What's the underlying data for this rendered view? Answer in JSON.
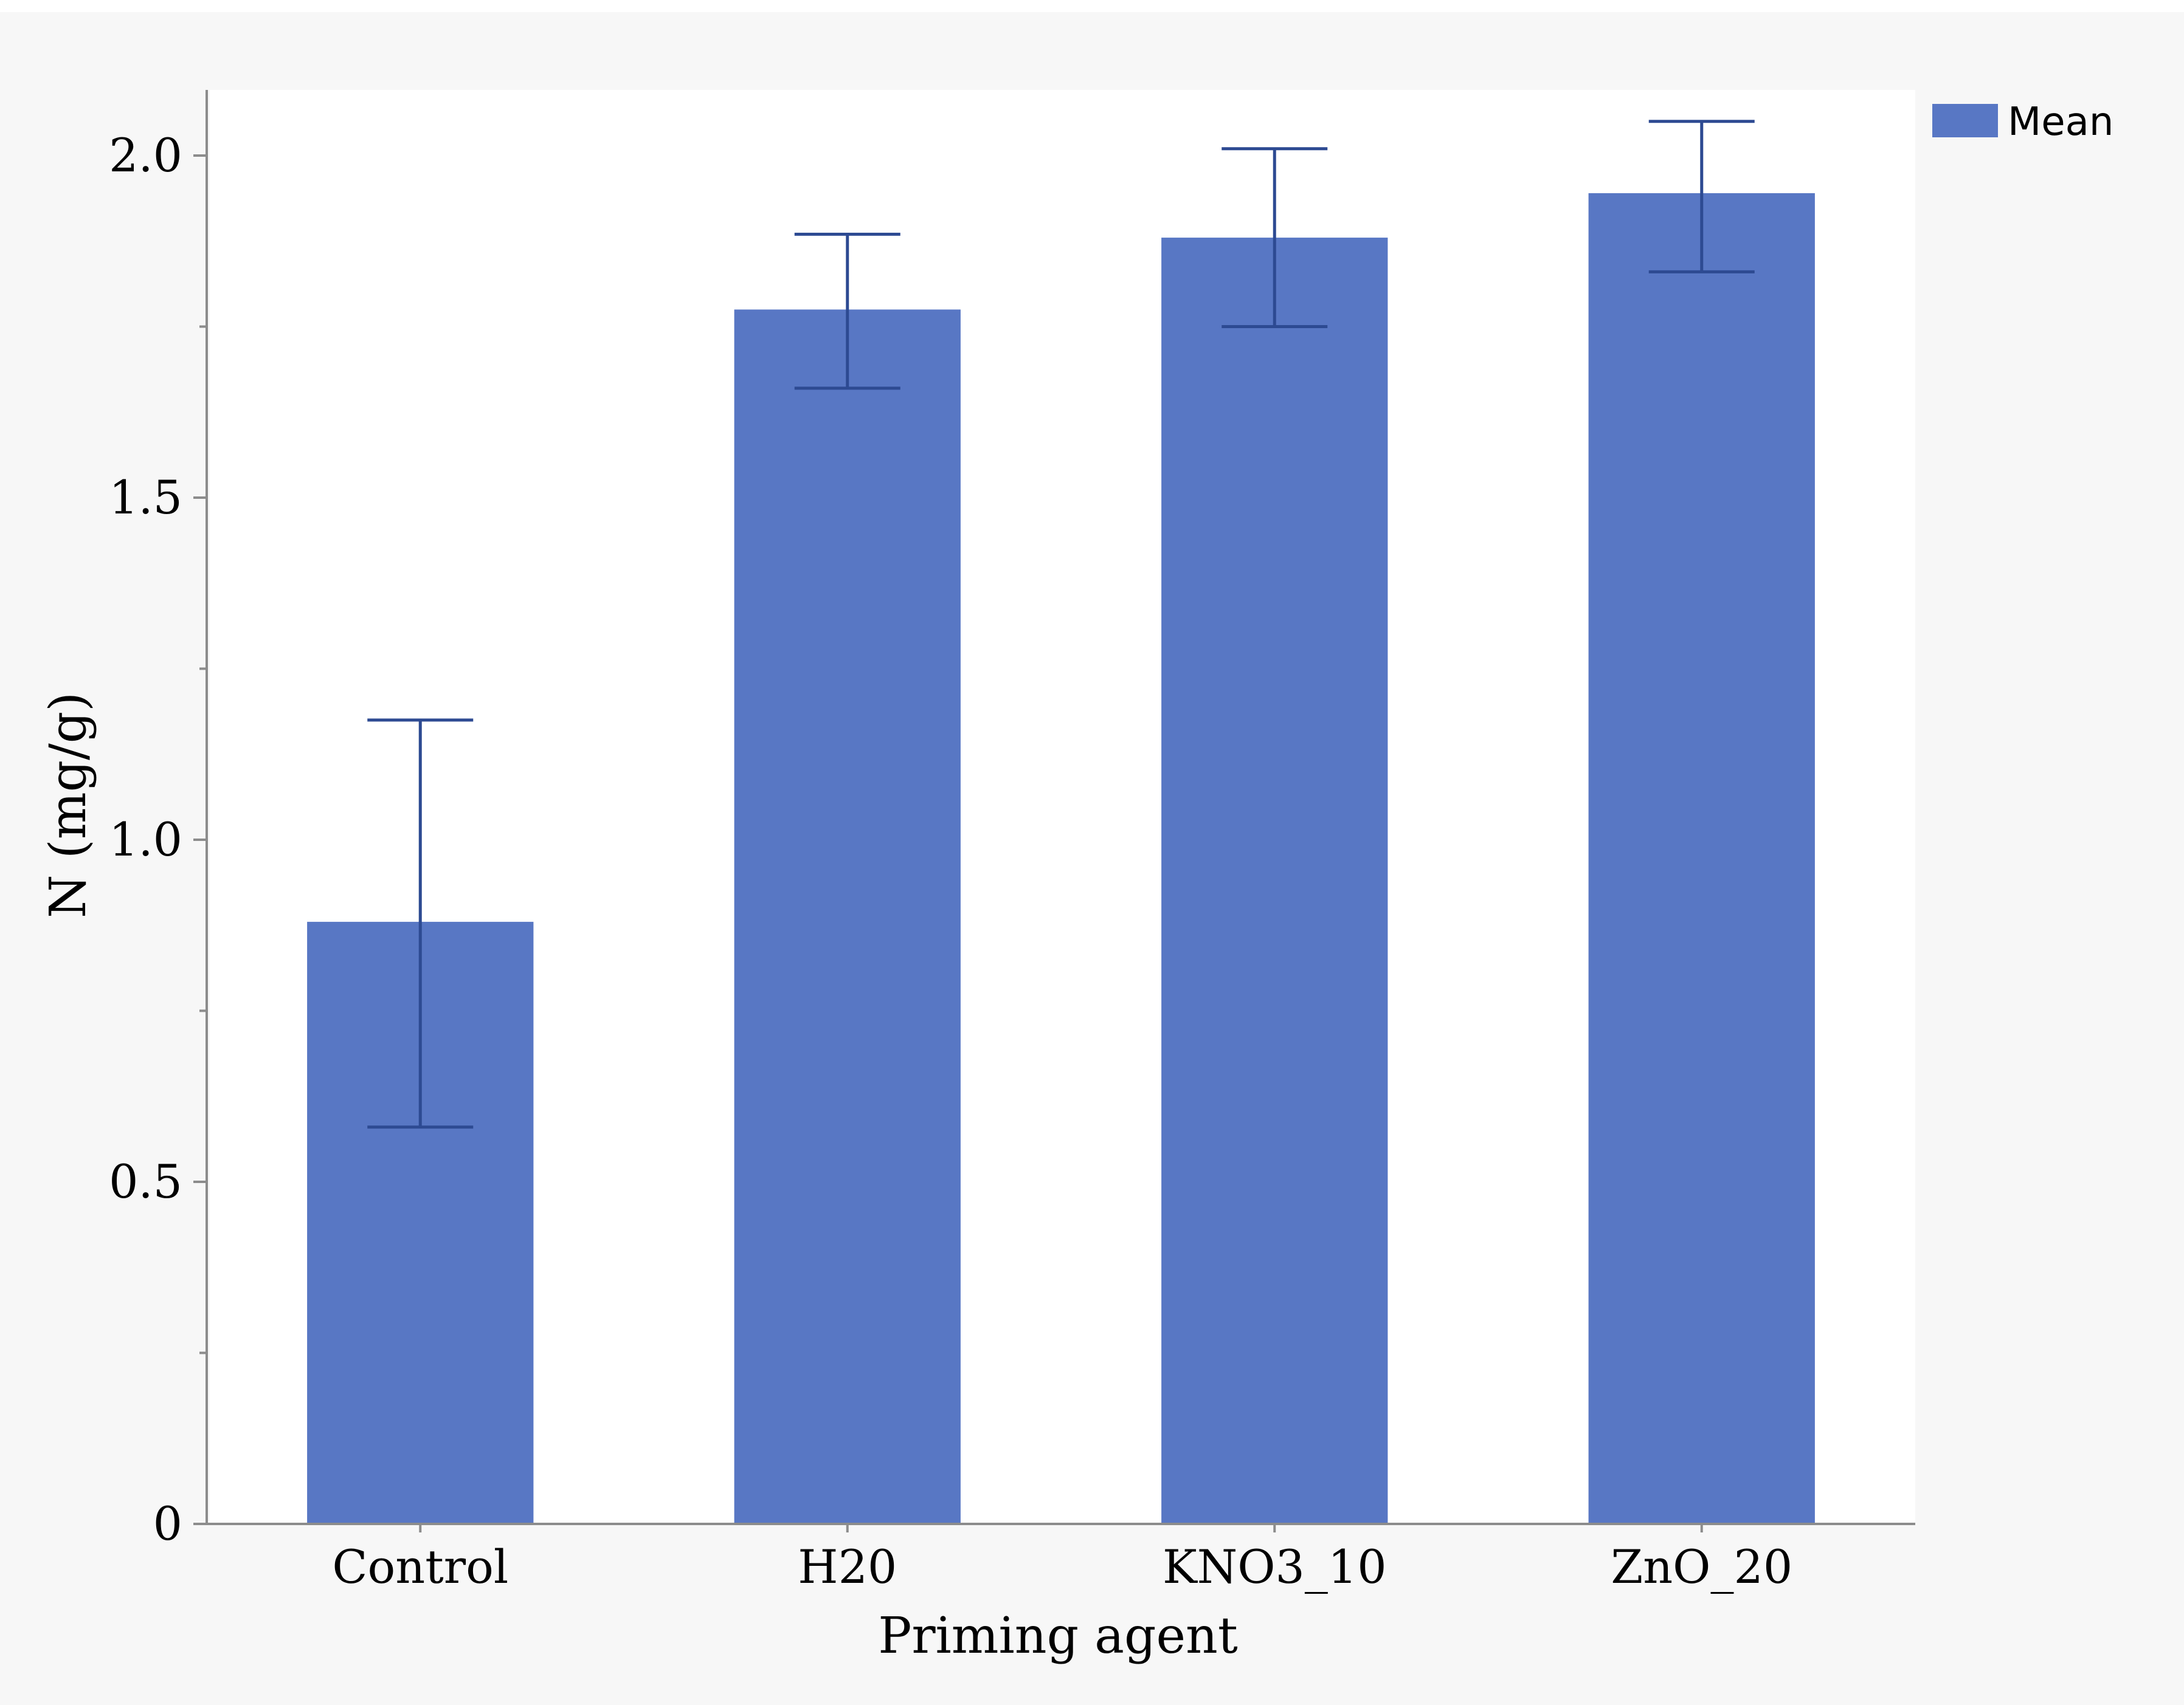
{
  "chart_data": {
    "type": "bar",
    "categories": [
      "Control",
      "H20",
      "KNO3_10",
      "ZnO_20"
    ],
    "series": [
      {
        "name": "Mean",
        "values": [
          0.88,
          1.775,
          1.88,
          1.945
        ],
        "error_low": [
          0.58,
          1.66,
          1.75,
          1.83
        ],
        "error_high": [
          1.175,
          1.885,
          2.01,
          2.05
        ]
      }
    ],
    "xlabel": "Priming agent",
    "ylabel": "N (mg/g)",
    "ylim": [
      0,
      2.1
    ],
    "yticks": [
      0,
      0.5,
      1.0,
      1.5,
      2.0
    ],
    "ytick_labels": [
      "0",
      "0.5",
      "1.0",
      "1.5",
      "2.0"
    ],
    "legend_position": "top-right",
    "grid": false,
    "colors": {
      "bar": "#5877c4",
      "error_bar": "#2d4a92",
      "axis": "#8c8c8c",
      "outer_background": "#f7f7f7",
      "plot_background": "#ffffff"
    }
  }
}
